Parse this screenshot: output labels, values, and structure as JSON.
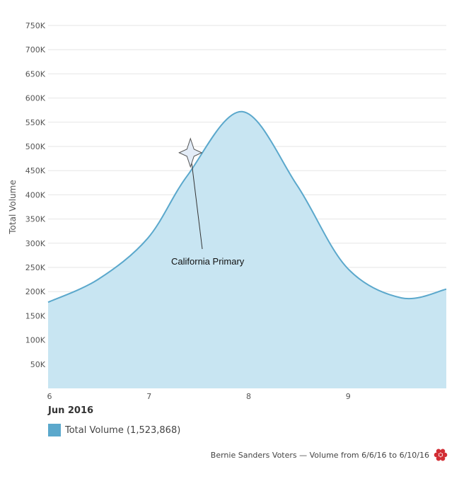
{
  "chart_data": {
    "type": "area",
    "ylabel": "Total Volume",
    "x_ticks": [
      "6",
      "7",
      "8",
      "9"
    ],
    "x_sublabel": "Jun 2016",
    "y_ticks": [
      "50K",
      "100K",
      "150K",
      "200K",
      "250K",
      "300K",
      "350K",
      "400K",
      "450K",
      "500K",
      "550K",
      "600K",
      "650K",
      "700K",
      "750K"
    ],
    "ylim": [
      0,
      750000
    ],
    "xlim": [
      6,
      10
    ],
    "grid": true,
    "series": [
      {
        "name": "Total Volume (1,523,868)",
        "color": "#5ba8cc",
        "fill": "#c8e5f2",
        "x": [
          6.0,
          6.5,
          7.0,
          7.4,
          7.95,
          8.5,
          9.0,
          9.55,
          10.0
        ],
        "y": [
          178000,
          225000,
          310000,
          440000,
          572000,
          420000,
          250000,
          187000,
          205000
        ]
      }
    ],
    "annotations": [
      {
        "x": 7.43,
        "y": 487000,
        "label": "California Primary",
        "marker": "star-icon"
      }
    ]
  },
  "legend": {
    "label": "Total Volume (1,523,868)",
    "color": "#5ba8cc"
  },
  "footer": {
    "text": "Bernie Sanders Voters — Volume from 6/6/16 to 6/10/16",
    "logo": "flower-logo-icon",
    "logo_color": "#d22e35"
  }
}
